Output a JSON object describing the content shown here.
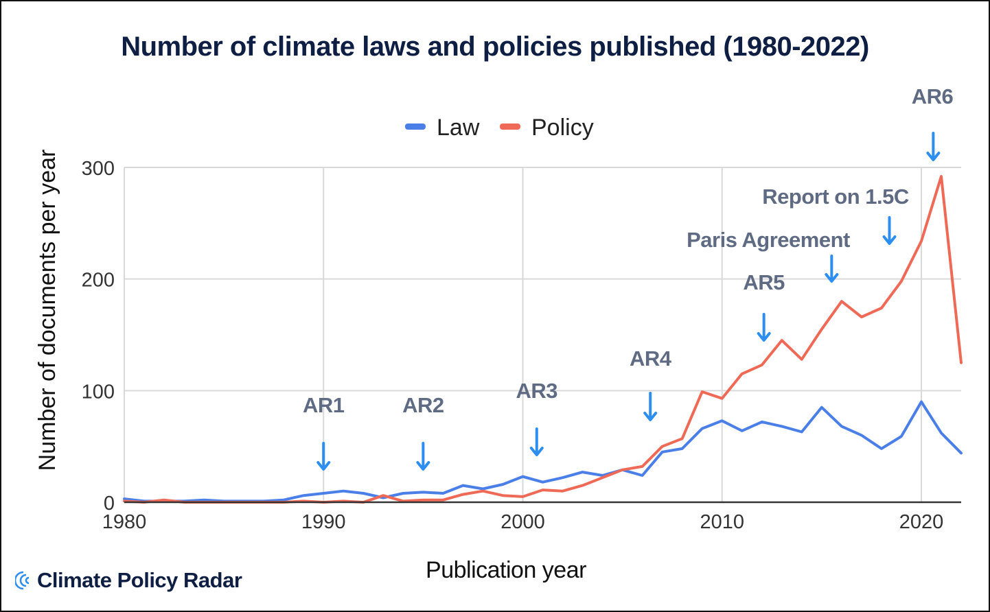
{
  "chart_data": {
    "type": "line",
    "title": "Number of climate laws and policies published (1980-2022)",
    "xlabel": "Publication year",
    "ylabel": "Number of documents per year",
    "xlim": [
      1980,
      2022
    ],
    "ylim": [
      0,
      300
    ],
    "x_ticks": [
      "1980",
      "1990",
      "2000",
      "2010",
      "2020"
    ],
    "x_tick_values": [
      1980,
      1990,
      2000,
      2010,
      2020
    ],
    "y_ticks": [
      "0",
      "100",
      "200",
      "300"
    ],
    "y_tick_values": [
      0,
      100,
      200,
      300
    ],
    "grid": true,
    "legend_position": "top-center",
    "x": [
      1980,
      1981,
      1982,
      1983,
      1984,
      1985,
      1986,
      1987,
      1988,
      1989,
      1990,
      1991,
      1992,
      1993,
      1994,
      1995,
      1996,
      1997,
      1998,
      1999,
      2000,
      2001,
      2002,
      2003,
      2004,
      2005,
      2006,
      2007,
      2008,
      2009,
      2010,
      2011,
      2012,
      2013,
      2014,
      2015,
      2016,
      2017,
      2018,
      2019,
      2020,
      2021,
      2022
    ],
    "series": [
      {
        "name": "Law",
        "color": "#4a7fe8",
        "values": [
          3,
          1,
          1,
          1,
          2,
          1,
          1,
          1,
          2,
          6,
          8,
          10,
          8,
          4,
          8,
          9,
          8,
          15,
          12,
          16,
          23,
          18,
          22,
          27,
          24,
          29,
          24,
          45,
          48,
          66,
          73,
          64,
          72,
          68,
          63,
          85,
          68,
          60,
          48,
          59,
          90,
          62,
          44
        ]
      },
      {
        "name": "Policy",
        "color": "#ee6a57",
        "values": [
          1,
          0,
          2,
          0,
          0,
          0,
          0,
          0,
          0,
          1,
          0,
          1,
          0,
          6,
          1,
          2,
          2,
          7,
          10,
          6,
          5,
          11,
          10,
          15,
          22,
          29,
          32,
          50,
          57,
          99,
          93,
          115,
          123,
          145,
          128,
          155,
          180,
          166,
          174,
          198,
          234,
          292,
          125
        ]
      }
    ],
    "annotations": [
      {
        "label": "AR1",
        "x": 1990.0
      },
      {
        "label": "AR2",
        "x": 1995.0
      },
      {
        "label": "AR3",
        "x": 2000.7
      },
      {
        "label": "AR4",
        "x": 2006.4
      },
      {
        "label": "AR5",
        "x": 2012.1
      },
      {
        "label": "Paris Agreement",
        "x": 2015.5
      },
      {
        "label": "Report on 1.5C",
        "x": 2018.7
      },
      {
        "label": "AR6",
        "x": 2020.6
      }
    ],
    "colors": {
      "title": "#0f1f44",
      "annotation_text": "#5f6b82",
      "annotation_arrow": "#2b8ef0",
      "grid": "#d9d9d9",
      "axis_text": "#333333"
    }
  },
  "brand": {
    "name": "Climate Policy Radar",
    "logo_color": "#2b8ef0",
    "text_color": "#0f1f44"
  }
}
